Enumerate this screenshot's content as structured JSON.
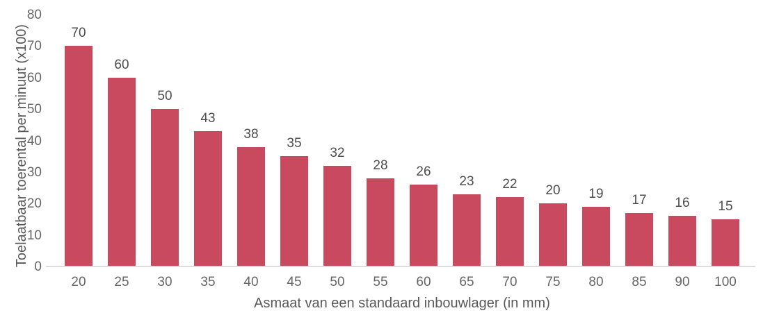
{
  "chart_data": {
    "type": "bar",
    "title": "",
    "xlabel": "Asmaat van een standaard inbouwlager (in mm)",
    "ylabel": "Toelaatbaar toerental per minuut (x100)",
    "categories": [
      "20",
      "25",
      "30",
      "35",
      "40",
      "45",
      "50",
      "55",
      "60",
      "65",
      "70",
      "75",
      "80",
      "85",
      "90",
      "100"
    ],
    "values": [
      70,
      60,
      50,
      43,
      38,
      35,
      32,
      28,
      26,
      23,
      22,
      20,
      19,
      17,
      16,
      15
    ],
    "ylim": [
      0,
      80
    ],
    "ytick_step": 10,
    "ytick_labels": [
      "0",
      "10",
      "20",
      "30",
      "40",
      "50",
      "60",
      "70",
      "80"
    ],
    "grid": false,
    "legend_position": "none",
    "value_labels_shown": true
  },
  "colors": {
    "bar": "#c9495f",
    "tick_text": "#666666",
    "value_text": "#4d4d4d",
    "axis_title_text": "#595959",
    "axis_line": "#dcdcdc",
    "background": "#ffffff"
  }
}
